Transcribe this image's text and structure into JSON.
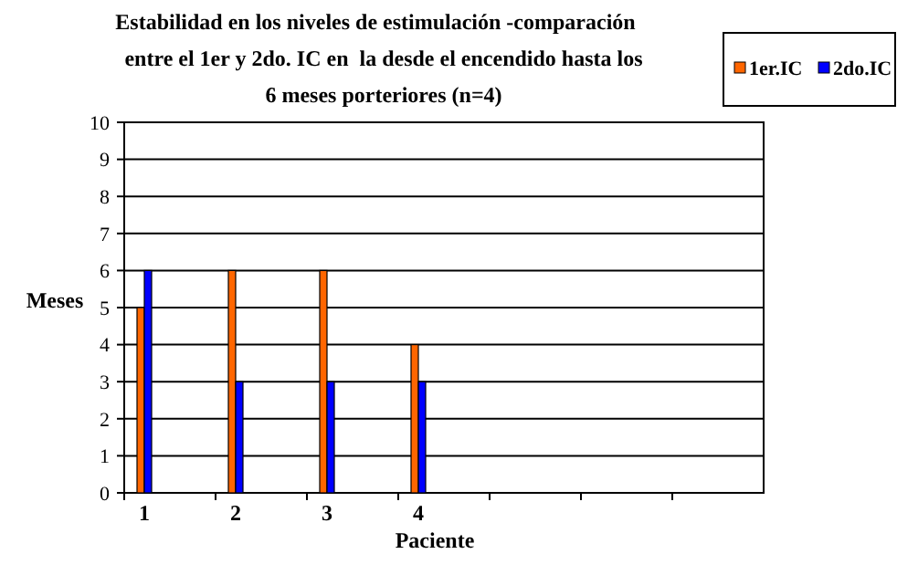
{
  "chart_data": {
    "type": "bar",
    "title": "Estabilidad en los niveles de estimulación -comparación    entre el 1er y 2do. IC en  la desde el encendido hasta los 6 meses porteriores (n=4)",
    "xlabel": "Paciente",
    "ylabel": "Meses",
    "categories": [
      "1",
      "2",
      "3",
      "4",
      null,
      null,
      null
    ],
    "series": [
      {
        "name": "1er.IC",
        "color": "#ff6600",
        "values": [
          5,
          6,
          6,
          4,
          null,
          null,
          null
        ]
      },
      {
        "name": "2do.IC",
        "color": "#0000ff",
        "values": [
          6,
          3,
          3,
          3,
          null,
          null,
          null
        ]
      }
    ],
    "ylim": [
      0,
      10
    ],
    "yticks": [
      0,
      1,
      2,
      3,
      4,
      5,
      6,
      7,
      8,
      9,
      10
    ],
    "grid": "y",
    "legend": "top right"
  }
}
